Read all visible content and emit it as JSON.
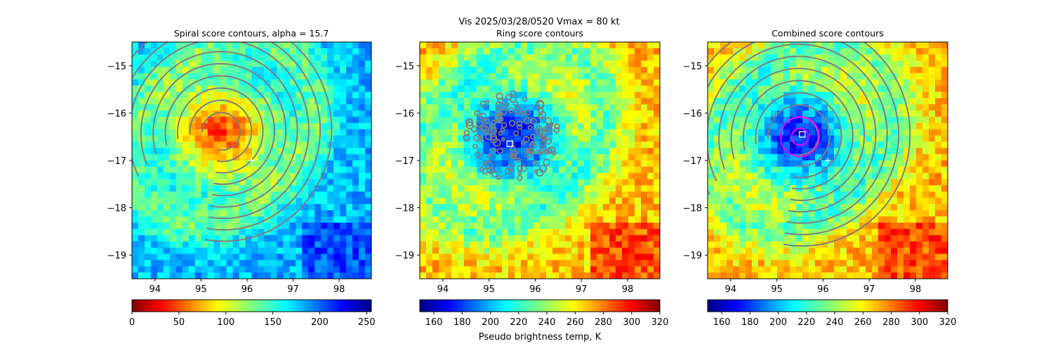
{
  "figure": {
    "title_line": "Vis  2025/03/28/0520    Vmax = 80 kt",
    "colorbar_label": "Pseudo brightness temp, K"
  },
  "chart_data": [
    {
      "type": "heatmap",
      "title": "Spiral score contours, alpha = 15.7",
      "x_ticks": [
        94,
        95,
        96,
        97,
        98
      ],
      "x_tick_labels": [
        "94",
        "95",
        "96",
        "97",
        "98"
      ],
      "y_ticks": [
        -15,
        -16,
        -17,
        -18,
        -19
      ],
      "y_tick_labels": [
        "−15",
        "−16",
        "−17",
        "−18",
        "−19"
      ],
      "xlim": [
        93.5,
        98.7
      ],
      "ylim": [
        -19.5,
        -14.5
      ],
      "colorscale": "reversed",
      "colorbar_range": [
        0,
        255
      ],
      "colorbar_ticks": [
        0,
        50,
        100,
        150,
        200,
        250
      ],
      "colorbar_tick_labels": [
        "0",
        "50",
        "100",
        "150",
        "200",
        "250"
      ],
      "center": [
        95.45,
        -16.4
      ],
      "spread": 1.1,
      "contours": "spiral",
      "plus_marker": [
        96.1,
        -17.0
      ],
      "square_marker": null,
      "magenta_circles": false
    },
    {
      "type": "heatmap",
      "title": "Ring score contours",
      "x_ticks": [
        94,
        95,
        96,
        97,
        98
      ],
      "x_tick_labels": [
        "94",
        "95",
        "96",
        "97",
        "98"
      ],
      "y_ticks": [
        -15,
        -16,
        -17,
        -18,
        -19
      ],
      "y_tick_labels": [
        "−15",
        "−16",
        "−17",
        "−18",
        "−19"
      ],
      "xlim": [
        93.5,
        98.7
      ],
      "ylim": [
        -19.5,
        -14.5
      ],
      "colorscale": "normal",
      "colorbar_range": [
        150,
        320
      ],
      "colorbar_ticks": [
        160,
        180,
        200,
        220,
        240,
        260,
        280,
        300,
        320
      ],
      "colorbar_tick_labels": [
        "160",
        "180",
        "200",
        "220",
        "240",
        "260",
        "280",
        "300",
        "320"
      ],
      "center": [
        95.5,
        -16.5
      ],
      "spread": 1.15,
      "contours": "ring",
      "plus_marker": null,
      "square_marker": [
        95.45,
        -16.65
      ],
      "magenta_circles": false
    },
    {
      "type": "heatmap",
      "title": "Combined score contours",
      "x_ticks": [
        94,
        95,
        96,
        97,
        98
      ],
      "x_tick_labels": [
        "94",
        "95",
        "96",
        "97",
        "98"
      ],
      "y_ticks": [
        -15,
        -16,
        -17,
        -18,
        -19
      ],
      "y_tick_labels": [
        "−15",
        "−16",
        "−17",
        "−18",
        "−19"
      ],
      "xlim": [
        93.5,
        98.7
      ],
      "ylim": [
        -19.5,
        -14.5
      ],
      "colorscale": "normal",
      "colorbar_range": [
        150,
        320
      ],
      "colorbar_ticks": [
        160,
        180,
        200,
        220,
        240,
        260,
        280,
        300,
        320
      ],
      "colorbar_tick_labels": [
        "160",
        "180",
        "200",
        "220",
        "240",
        "260",
        "280",
        "300",
        "320"
      ],
      "center": [
        95.5,
        -16.5
      ],
      "spread": 1.15,
      "contours": "combined",
      "plus_marker": [
        96.1,
        -17.0
      ],
      "square_marker": [
        95.55,
        -16.45
      ],
      "magenta_circles": true
    }
  ]
}
